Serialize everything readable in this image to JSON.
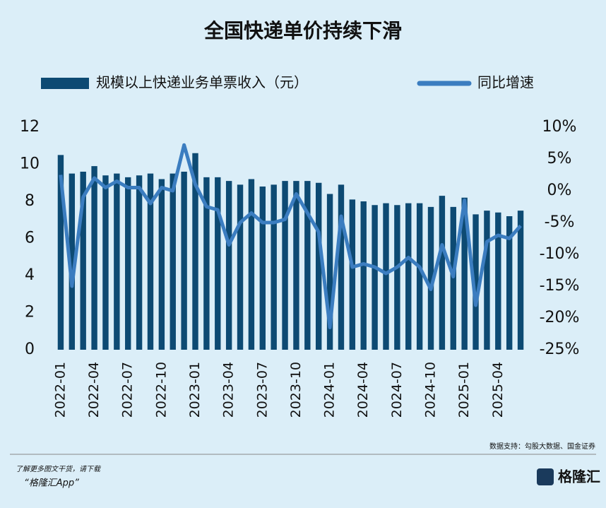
{
  "chart_data": {
    "type": "bar-line",
    "title": "全国快递单价持续下滑",
    "categories": [
      "2022-01",
      null,
      null,
      "2022-04",
      null,
      null,
      "2022-07",
      null,
      null,
      "2022-10",
      null,
      null,
      "2023-01",
      null,
      null,
      "2023-04",
      null,
      null,
      "2023-07",
      null,
      null,
      "2023-10",
      null,
      null,
      "2024-01",
      null,
      null,
      "2024-04",
      null,
      null,
      "2024-07",
      null,
      null,
      "2024-10",
      null,
      null,
      "2025-01",
      null,
      null,
      "2025-04",
      null,
      null
    ],
    "series": [
      {
        "name": "规模以上快递业务单票收入（元）",
        "type": "bar",
        "color": "#0d4a73",
        "values": [
          10.5,
          9.5,
          9.6,
          9.9,
          9.4,
          9.5,
          9.3,
          9.4,
          9.5,
          9.2,
          9.5,
          9.6,
          10.6,
          9.3,
          9.3,
          9.1,
          8.9,
          9.2,
          8.8,
          8.9,
          9.1,
          9.1,
          9.1,
          9.0,
          8.4,
          8.9,
          8.1,
          8.0,
          7.8,
          7.9,
          7.8,
          7.9,
          7.9,
          7.7,
          8.3,
          7.7,
          8.2,
          7.3,
          7.5,
          7.4,
          7.2,
          7.5
        ]
      },
      {
        "name": "同比增速",
        "type": "line",
        "axis": "y2",
        "color": "#3b7dc0",
        "values": [
          2.5,
          -15,
          -1,
          2,
          0.5,
          1.5,
          0.5,
          0.5,
          -2,
          0.5,
          0,
          7.2,
          1,
          -2.5,
          -3,
          -8.5,
          -5,
          -3.5,
          -5,
          -5,
          -4.5,
          -0.5,
          -3.5,
          -6.5,
          -21.5,
          -4,
          -12,
          -11.5,
          -12,
          -13,
          -12,
          -10.5,
          -12,
          -15.5,
          -8.5,
          -13.5,
          -1.5,
          -18,
          -8,
          -7,
          -7.5,
          -5.5
        ]
      }
    ],
    "ylim": [
      0,
      12
    ],
    "yticks": [
      0,
      2,
      4,
      6,
      8,
      10,
      12
    ],
    "y2lim": [
      -25,
      10
    ],
    "y2ticks": [
      {
        "value": -25,
        "label": "-25%"
      },
      {
        "value": -20,
        "label": "-20%"
      },
      {
        "value": -15,
        "label": "-15%"
      },
      {
        "value": -10,
        "label": "-10%"
      },
      {
        "value": -5,
        "label": "-5%"
      },
      {
        "value": 0,
        "label": "0%"
      },
      {
        "value": 5,
        "label": "5%"
      },
      {
        "value": 10,
        "label": "10%"
      }
    ],
    "source": "数据支持：勾股大数据、国金证券"
  },
  "footer": {
    "note": "了解更多图文干货，请下载",
    "app": "“格隆汇App”",
    "logo": "格隆汇"
  }
}
